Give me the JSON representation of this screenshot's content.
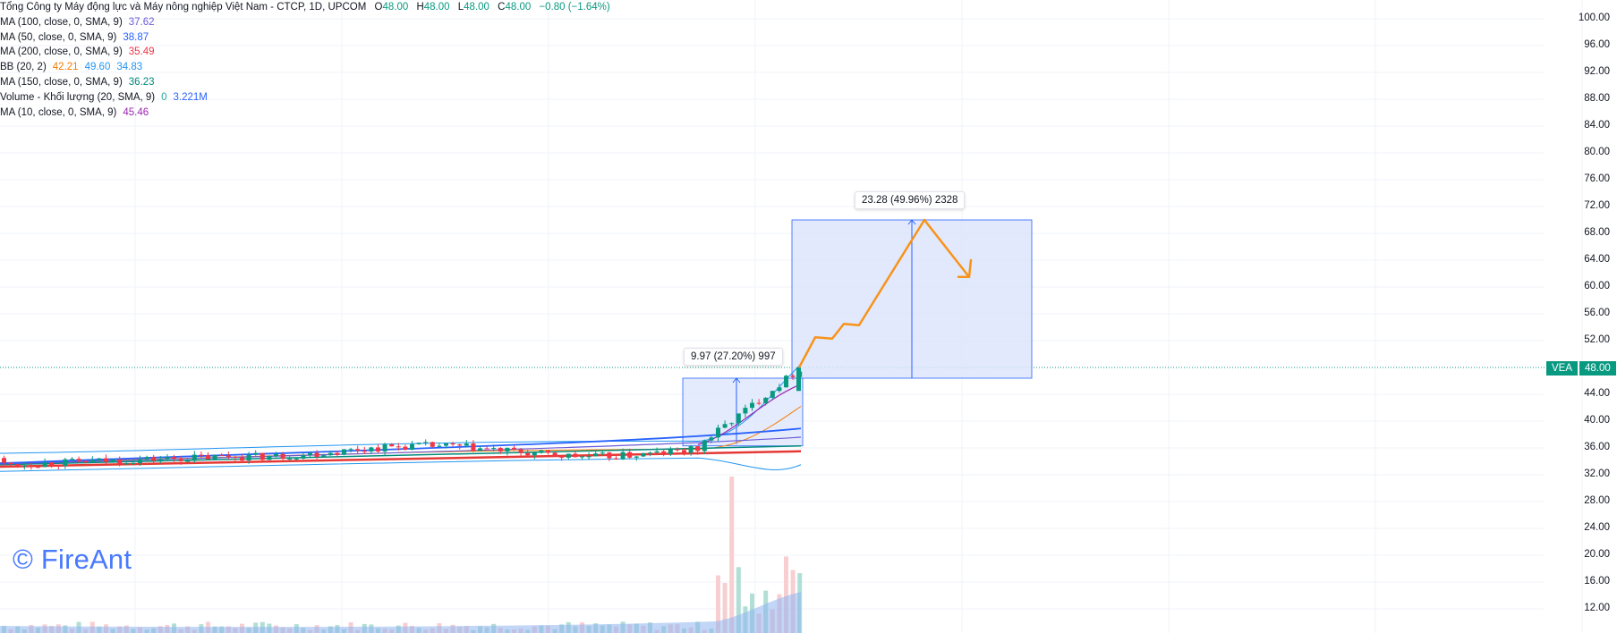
{
  "header": {
    "title": "Tổng Công ty Máy động lực và Máy nông nghiệp Việt Nam - CTCP, 1D, UPCOM",
    "open_label": "O",
    "open": "48.00",
    "high_label": "H",
    "high": "48.00",
    "low_label": "L",
    "low": "48.00",
    "close_label": "C",
    "close": "48.00",
    "change": "−0.80 (−1.64%)"
  },
  "indicators": [
    {
      "label": "MA (100, close, 0, SMA, 9)",
      "value": "37.62",
      "color": "#6b5bd6"
    },
    {
      "label": "MA (50, close, 0, SMA, 9)",
      "value": "38.87",
      "color": "#2962ff"
    },
    {
      "label": "MA (200, close, 0, SMA, 9)",
      "value": "35.49",
      "color": "#f23645"
    },
    {
      "label": "BB (20, 2)",
      "value": "42.21",
      "value2": "49.60",
      "value3": "34.83",
      "color": "#f57c00",
      "color2": "#2196f3",
      "color3": "#2196f3"
    },
    {
      "label": "MA (150, close, 0, SMA, 9)",
      "value": "36.23",
      "color": "#00897b"
    },
    {
      "label": "Volume - Khối lượng (20, SMA, 9)",
      "value": "0",
      "value2": "3.221M",
      "color": "#26a69a",
      "color2": "#2962ff"
    },
    {
      "label": "MA (10, close, 0, SMA, 9)",
      "value": "45.46",
      "color": "#9c27b0"
    }
  ],
  "watermark": "© FireAnt",
  "price_axis": [
    "100.00",
    "96.00",
    "92.00",
    "88.00",
    "84.00",
    "80.00",
    "76.00",
    "72.00",
    "68.00",
    "64.00",
    "60.00",
    "56.00",
    "52.00",
    "44.00",
    "40.00",
    "36.00",
    "32.00",
    "28.00",
    "24.00",
    "20.00",
    "16.00",
    "12.00"
  ],
  "current_price_tag": {
    "symbol": "VEA",
    "price": "48.00"
  },
  "measures": [
    {
      "label": "9.97 (27.20%) 997"
    },
    {
      "label": "23.28 (49.96%) 2328"
    }
  ],
  "colors": {
    "up": "#089981",
    "down": "#f23645",
    "projection": "#f7931a",
    "measure_fill": "#dbe4fb",
    "measure_line": "#2962ff"
  }
}
